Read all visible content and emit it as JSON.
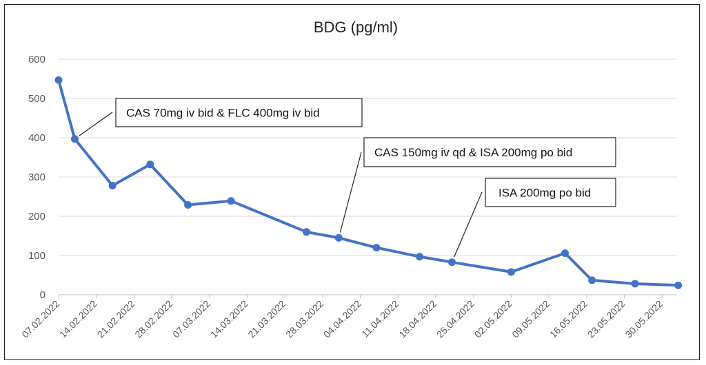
{
  "chart_data": {
    "type": "line",
    "title": "BDG (pg/ml)",
    "xlabel": "",
    "ylabel": "",
    "ylim": [
      0,
      600
    ],
    "yticks": [
      0,
      100,
      200,
      300,
      400,
      500,
      600
    ],
    "x_tick_labels": [
      "07.02.2022",
      "14.02.2022",
      "21.02.2022",
      "28.02.2022",
      "07.03.2022",
      "14.03.2022",
      "21.03.2022",
      "28.03.2022",
      "04.04.2022",
      "11.04.2022",
      "18.04.2022",
      "25.04.2022",
      "02.05.2022",
      "09.05.2022",
      "16.05.2022",
      "23.05.2022",
      "30.05.2022"
    ],
    "grid": "horizontal",
    "line_color": "#4472C4",
    "series": [
      {
        "points": [
          {
            "x": "07.02.2022",
            "y": 547
          },
          {
            "x": "10.02.2022",
            "y": 397
          },
          {
            "x": "17.02.2022",
            "y": 278
          },
          {
            "x": "24.02.2022",
            "y": 332
          },
          {
            "x": "03.03.2022",
            "y": 229
          },
          {
            "x": "11.03.2022",
            "y": 239
          },
          {
            "x": "25.03.2022",
            "y": 160
          },
          {
            "x": "31.03.2022",
            "y": 145
          },
          {
            "x": "07.04.2022",
            "y": 120
          },
          {
            "x": "15.04.2022",
            "y": 97
          },
          {
            "x": "21.04.2022",
            "y": 83
          },
          {
            "x": "02.05.2022",
            "y": 58
          },
          {
            "x": "12.05.2022",
            "y": 106
          },
          {
            "x": "17.05.2022",
            "y": 37
          },
          {
            "x": "25.05.2022",
            "y": 28
          },
          {
            "x": "02.06.2022",
            "y": 24
          }
        ]
      }
    ],
    "annotations": [
      {
        "text": "CAS 70mg iv bid & FLC 400mg iv bid",
        "x": "10.02.2022",
        "y": 397
      },
      {
        "text": "CAS 150mg iv qd & ISA 200mg po bid",
        "x": "31.03.2022",
        "y": 145
      },
      {
        "text": "ISA 200mg po bid",
        "x": "21.04.2022",
        "y": 83
      }
    ]
  }
}
